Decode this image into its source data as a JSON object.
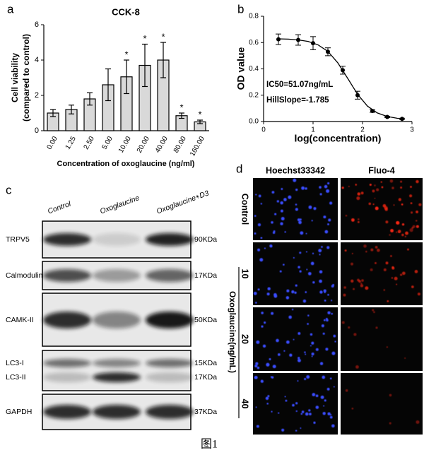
{
  "chart_data": [
    {
      "type": "bar",
      "title": "CCK-8",
      "x_label": "Concentration of oxoglaucine (ng/ml)",
      "y_label": [
        "Cell viability",
        "(compared to control)"
      ],
      "categories": [
        "0.00",
        "1.25",
        "2.50",
        "5.00",
        "10.00",
        "20.00",
        "40.00",
        "80.00",
        "160.00"
      ],
      "values": [
        1.0,
        1.2,
        1.8,
        2.6,
        3.05,
        3.7,
        4.0,
        0.85,
        0.5
      ],
      "errors": [
        0.2,
        0.25,
        0.35,
        0.9,
        0.95,
        1.2,
        1.0,
        0.15,
        0.1
      ],
      "significance": [
        null,
        null,
        null,
        null,
        "*",
        "*",
        "*",
        "*",
        "*"
      ],
      "color": "#d9d9d9",
      "ylim": [
        0,
        6
      ],
      "yticks": [
        0,
        2,
        4,
        6
      ]
    },
    {
      "type": "scatter",
      "x_label": "log(concentration)",
      "y_label": "OD value",
      "annotations": [
        "IC50=51.07ng/mL",
        "HillSlope=-1.785"
      ],
      "x": [
        0.3,
        0.7,
        1.0,
        1.3,
        1.6,
        1.9,
        2.2,
        2.5,
        2.8
      ],
      "values": [
        0.625,
        0.62,
        0.595,
        0.53,
        0.39,
        0.2,
        0.08,
        0.035,
        0.02
      ],
      "errors": [
        0.04,
        0.04,
        0.05,
        0.03,
        0.03,
        0.03,
        0.01,
        0.005,
        0.005
      ],
      "fit": {
        "x": [
          0.3,
          0.5,
          0.7,
          0.9,
          1.1,
          1.3,
          1.5,
          1.7,
          1.9,
          2.1,
          2.3,
          2.5,
          2.7,
          2.8
        ],
        "values": [
          0.628,
          0.626,
          0.62,
          0.609,
          0.583,
          0.533,
          0.446,
          0.328,
          0.207,
          0.117,
          0.065,
          0.038,
          0.025,
          0.022
        ]
      },
      "color": "#000000",
      "xlim": [
        0,
        3
      ],
      "xticks": [
        0,
        1,
        2,
        3
      ],
      "ylim": [
        0,
        0.8
      ],
      "yticks": [
        {
          "value": 0,
          "label": "0.0"
        },
        {
          "value": 0.2,
          "label": "0.2"
        },
        {
          "value": 0.4,
          "label": "0.4"
        },
        {
          "value": 0.6,
          "label": "0.6"
        },
        {
          "value": 0.8,
          "label": "0.8"
        }
      ]
    }
  ],
  "panel_labels": [
    "a",
    "b",
    "c",
    "d"
  ],
  "western_blot": {
    "lanes": [
      "Control",
      "Oxoglaucine",
      "Oxoglaucine+D3"
    ],
    "rows": [
      {
        "labels": [
          "TRPV5"
        ],
        "sizes": [
          "90KDa"
        ]
      },
      {
        "labels": [
          "Calmodulin"
        ],
        "sizes": [
          "17KDa"
        ]
      },
      {
        "labels": [
          "CAMK-II"
        ],
        "sizes": [
          "50KDa"
        ]
      },
      {
        "labels": [
          "LC3-I",
          "LC3-II"
        ],
        "sizes": [
          "15KDa",
          "17KDa"
        ]
      },
      {
        "labels": [
          "GAPDH"
        ],
        "sizes": [
          "37KDa"
        ]
      }
    ]
  },
  "fluorescence": {
    "columns": [
      "Hoechst33342",
      "Fluo-4"
    ],
    "rows": [
      "Control",
      "10",
      "20",
      "40"
    ],
    "group_label": "Oxoglaucine(ng/mL)"
  },
  "caption": "图1"
}
